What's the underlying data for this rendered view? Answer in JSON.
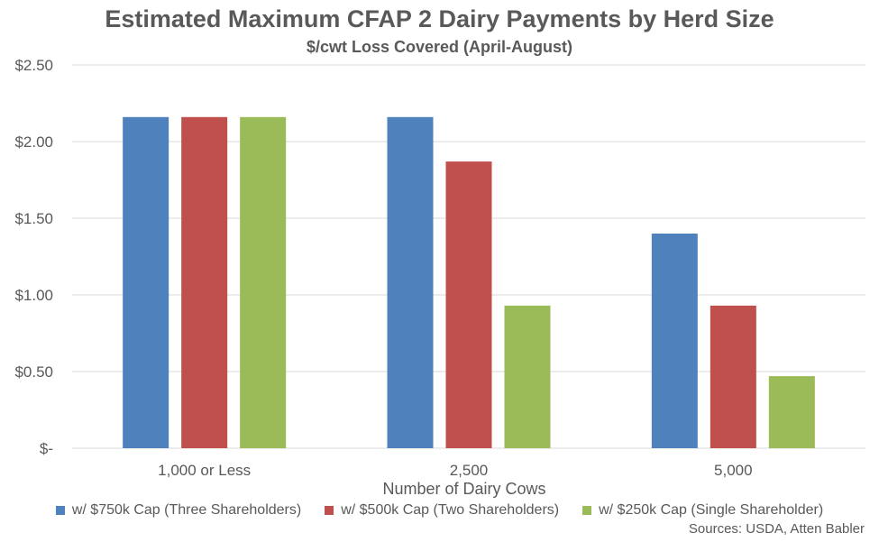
{
  "chart_data": {
    "type": "bar",
    "title": "Estimated Maximum CFAP 2 Dairy Payments by Herd Size",
    "subtitle": "$/cwt Loss Covered (April-August)",
    "xlabel": "Number of Dairy Cows",
    "ylabel": "",
    "categories": [
      "1,000 or Less",
      "2,500",
      "5,000"
    ],
    "ylim": [
      0,
      2.5
    ],
    "yticks": [
      0,
      0.5,
      1.0,
      1.5,
      2.0,
      2.5
    ],
    "ytick_labels": [
      "$-",
      "$0.50",
      "$1.00",
      "$1.50",
      "$2.00",
      "$2.50"
    ],
    "grid": true,
    "legend_position": "bottom",
    "series": [
      {
        "name": "w/ $750k Cap (Three Shareholders)",
        "color": "#4F81BD",
        "values": [
          2.16,
          2.16,
          1.4
        ]
      },
      {
        "name": "w/ $500k Cap (Two Shareholders)",
        "color": "#C0504D",
        "values": [
          2.16,
          1.87,
          0.93
        ]
      },
      {
        "name": "w/ $250k Cap (Single Shareholder)",
        "color": "#9BBB59",
        "values": [
          2.16,
          0.93,
          0.47
        ]
      }
    ],
    "source": "Sources: USDA, Atten Babler"
  }
}
